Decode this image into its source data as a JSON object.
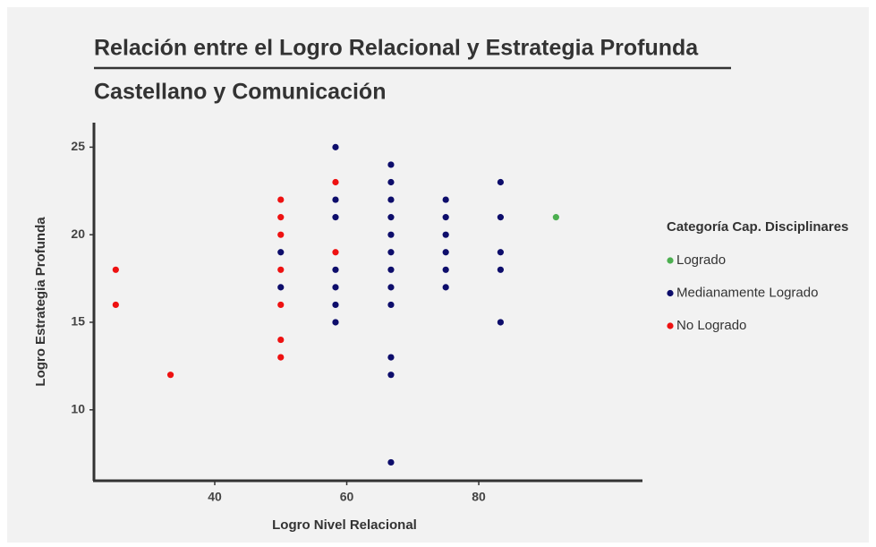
{
  "chart_data": {
    "type": "scatter",
    "title": "Relación entre el Logro Relacional y Estrategia Profunda",
    "subtitle": "Castellano y Comunicación",
    "x_label": "Logro Nivel Relacional",
    "y_label": "Logro Estrategia Profunda",
    "legend_title": "Categoría Cap. Disciplinares",
    "legend_position": "right",
    "xlim": [
      21.7,
      104.8
    ],
    "ylim": [
      5.95,
      26.4
    ],
    "xticks": [
      40,
      60,
      80
    ],
    "yticks": [
      10,
      15,
      20,
      25
    ],
    "grid": false,
    "series": [
      {
        "name": "Logrado",
        "color": "#4caf50",
        "x": [
          91.7
        ],
        "values": [
          21
        ]
      },
      {
        "name": "Medianamente Logrado",
        "color": "#0d0d6b",
        "x": [
          50,
          50,
          58.3,
          58.3,
          58.3,
          58.3,
          58.3,
          58.3,
          58.3,
          66.7,
          66.7,
          66.7,
          66.7,
          66.7,
          66.7,
          66.7,
          66.7,
          66.7,
          66.7,
          66.7,
          66.7,
          75,
          75,
          75,
          75,
          75,
          75,
          83.3,
          83.3,
          83.3,
          83.3,
          83.3
        ],
        "values": [
          19,
          17,
          25,
          22,
          21,
          18,
          17,
          16,
          15,
          24,
          23,
          22,
          21,
          20,
          19,
          18,
          17,
          16,
          13,
          12,
          7,
          22,
          21,
          20,
          19,
          18,
          17,
          23,
          21,
          19,
          18,
          15
        ]
      },
      {
        "name": "No Logrado",
        "color": "#ee1111",
        "x": [
          25,
          25,
          33.3,
          50,
          50,
          50,
          50,
          50,
          50,
          50,
          58.3,
          58.3
        ],
        "values": [
          18,
          16,
          12,
          22,
          21,
          20,
          18,
          16,
          14,
          13,
          23,
          19
        ]
      }
    ]
  }
}
